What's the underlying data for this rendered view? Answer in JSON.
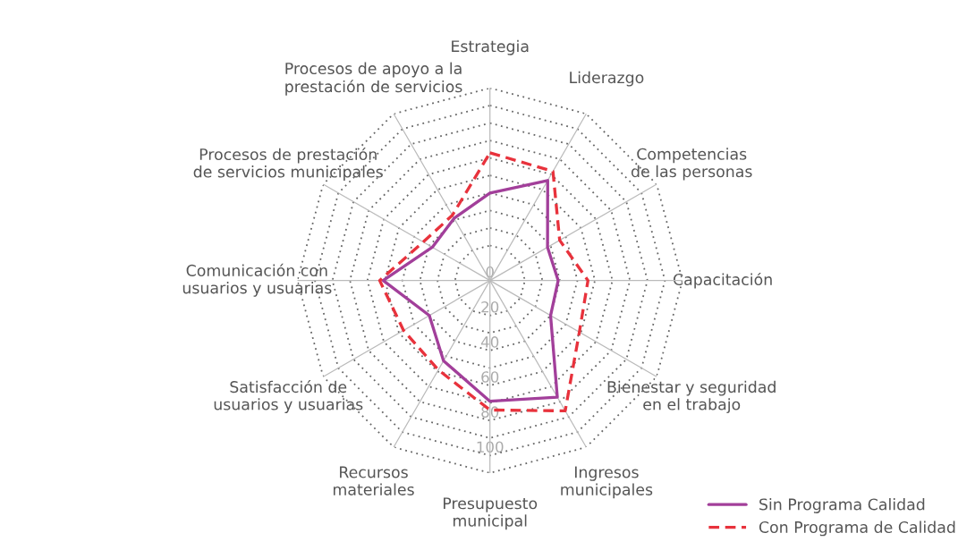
{
  "chart_data": {
    "type": "radar",
    "categories": [
      "Estrategia",
      "Liderazgo",
      "Competencias\nde las personas",
      "Capacitación",
      "Bienestar y seguridad\nen el trabajo",
      "Ingresos\nmunicipales",
      "Presupuesto\nmunicipal",
      "Recursos\nmateriales",
      "Satisfacción de\nusuarios y usuarias",
      "Comunicación con\nusuarios y usuarias",
      "Procesos de prestación\nde servicios municipales",
      "Procesos de apoyo a la\nprestación de servicios"
    ],
    "series": [
      {
        "name": "Sin Programa Calidad",
        "color": "#a23f9a",
        "line_style": "solid",
        "values": [
          50,
          66,
          38,
          39,
          40,
          77,
          69,
          53,
          40,
          61,
          38,
          41
        ]
      },
      {
        "name": "Con Programa de Calidad",
        "color": "#e8323c",
        "line_style": "dashed",
        "values": [
          73,
          72,
          46,
          56,
          59,
          86,
          74,
          59,
          57,
          63,
          44,
          43
        ]
      }
    ],
    "ylim": [
      0,
      110
    ],
    "yticks": [
      0,
      20,
      40,
      60,
      80,
      100
    ],
    "grid": true,
    "legend": "bottom right",
    "marker": "none"
  }
}
